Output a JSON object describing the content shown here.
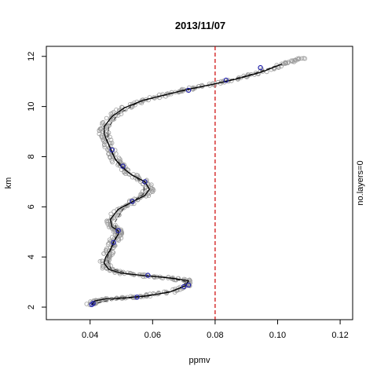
{
  "chart_data": {
    "type": "scatter",
    "title": "2013/11/07",
    "xlabel": "ppmv",
    "ylabel": "km",
    "right_label": "no.layers=0",
    "xlim": [
      0.026,
      0.124
    ],
    "ylim": [
      1.5,
      12.4
    ],
    "xticks": [
      0.04,
      0.06,
      0.08,
      0.1,
      0.12
    ],
    "xtick_labels": [
      "0.04",
      "0.06",
      "0.08",
      "0.10",
      "0.12"
    ],
    "yticks": [
      2,
      4,
      6,
      8,
      10,
      12
    ],
    "ytick_labels": [
      "2",
      "4",
      "6",
      "8",
      "10",
      "12"
    ],
    "reference_line": {
      "x": 0.08,
      "color": "#cc0000",
      "style": "dashed"
    },
    "colors": {
      "raw": "#9a9a9a",
      "smooth": "#000000",
      "fit": "#333333",
      "markers": "#2222aa"
    },
    "series": [
      {
        "kind": "smooth-line",
        "points": [
          [
            0.0405,
            2.1
          ],
          [
            0.0415,
            2.25
          ],
          [
            0.045,
            2.33
          ],
          [
            0.052,
            2.38
          ],
          [
            0.058,
            2.45
          ],
          [
            0.0655,
            2.6
          ],
          [
            0.0705,
            2.85
          ],
          [
            0.0715,
            3.05
          ],
          [
            0.0665,
            3.15
          ],
          [
            0.058,
            3.25
          ],
          [
            0.05,
            3.35
          ],
          [
            0.046,
            3.5
          ],
          [
            0.0445,
            3.75
          ],
          [
            0.045,
            4.0
          ],
          [
            0.0465,
            4.3
          ],
          [
            0.0475,
            4.6
          ],
          [
            0.049,
            4.9
          ],
          [
            0.049,
            5.05
          ],
          [
            0.047,
            5.2
          ],
          [
            0.0465,
            5.5
          ],
          [
            0.049,
            5.9
          ],
          [
            0.0535,
            6.2
          ],
          [
            0.0575,
            6.45
          ],
          [
            0.059,
            6.7
          ],
          [
            0.0575,
            7.0
          ],
          [
            0.053,
            7.3
          ],
          [
            0.05,
            7.6
          ],
          [
            0.048,
            7.9
          ],
          [
            0.047,
            8.2
          ],
          [
            0.0455,
            8.6
          ],
          [
            0.0445,
            8.9
          ],
          [
            0.0445,
            9.2
          ],
          [
            0.047,
            9.6
          ],
          [
            0.051,
            9.95
          ],
          [
            0.057,
            10.25
          ],
          [
            0.065,
            10.5
          ],
          [
            0.071,
            10.68
          ],
          [
            0.079,
            10.88
          ],
          [
            0.087,
            11.1
          ],
          [
            0.095,
            11.38
          ],
          [
            0.1015,
            11.7
          ]
        ]
      },
      {
        "kind": "dashed-fit",
        "points": [
          [
            0.0405,
            2.1
          ],
          [
            0.047,
            2.3
          ],
          [
            0.058,
            2.42
          ],
          [
            0.068,
            2.7
          ],
          [
            0.071,
            3.0
          ],
          [
            0.064,
            3.2
          ],
          [
            0.053,
            3.3
          ],
          [
            0.0465,
            3.55
          ],
          [
            0.0455,
            4.0
          ],
          [
            0.0475,
            4.5
          ],
          [
            0.0485,
            5.0
          ],
          [
            0.048,
            5.4
          ],
          [
            0.051,
            6.0
          ],
          [
            0.057,
            6.5
          ],
          [
            0.0575,
            6.9
          ],
          [
            0.052,
            7.4
          ],
          [
            0.0475,
            8.0
          ],
          [
            0.0455,
            8.6
          ],
          [
            0.046,
            9.2
          ],
          [
            0.049,
            9.7
          ],
          [
            0.056,
            10.2
          ],
          [
            0.067,
            10.55
          ],
          [
            0.08,
            10.9
          ],
          [
            0.092,
            11.3
          ],
          [
            0.1015,
            11.7
          ]
        ]
      },
      {
        "kind": "markers",
        "points": [
          [
            0.0405,
            2.1
          ],
          [
            0.041,
            2.15
          ],
          [
            0.055,
            2.4
          ],
          [
            0.07,
            2.82
          ],
          [
            0.0715,
            2.88
          ],
          [
            0.0585,
            3.27
          ],
          [
            0.0475,
            4.58
          ],
          [
            0.049,
            5.05
          ],
          [
            0.0535,
            6.22
          ],
          [
            0.0575,
            7.0
          ],
          [
            0.0505,
            7.62
          ],
          [
            0.047,
            8.27
          ],
          [
            0.0715,
            10.65
          ],
          [
            0.0835,
            11.05
          ],
          [
            0.0945,
            11.55
          ]
        ]
      }
    ]
  }
}
